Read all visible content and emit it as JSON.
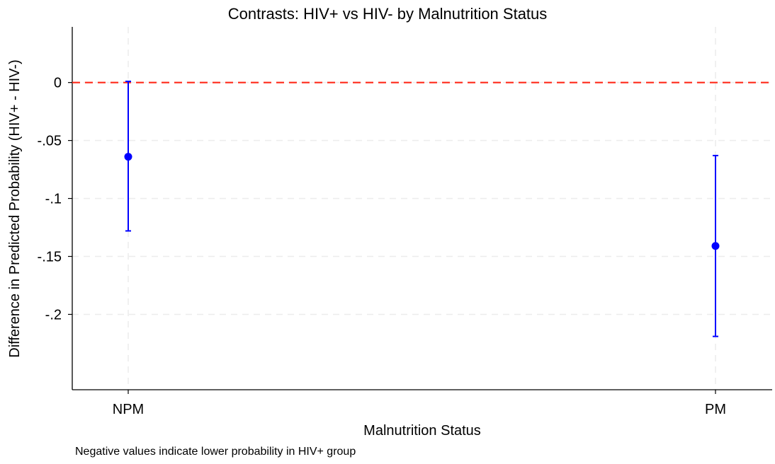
{
  "chart_data": {
    "type": "scatter",
    "title": "Contrasts: HIV+ vs HIV- by Malnutrition Status",
    "xlabel": "Malnutrition Status",
    "ylabel": "Difference in Predicted Probability (HIV+ - HIV-)",
    "note": "Negative values indicate lower probability in HIV+ group",
    "categories": [
      "NPM",
      "PM"
    ],
    "estimates": [
      -0.064,
      -0.141
    ],
    "ci_lower": [
      -0.128,
      -0.219
    ],
    "ci_upper": [
      0.001,
      -0.063
    ],
    "ylim": [
      -0.265,
      0.048
    ],
    "yticks": [
      0,
      -0.05,
      -0.1,
      -0.15,
      -0.2
    ],
    "ytick_labels": [
      "0",
      "-.05",
      "-.1",
      "-.15",
      "-.2"
    ],
    "reference_line": 0,
    "grid": true,
    "colors": {
      "point": "#0000ff",
      "reference": "#ff2a1a",
      "grid": "#ececec"
    }
  }
}
